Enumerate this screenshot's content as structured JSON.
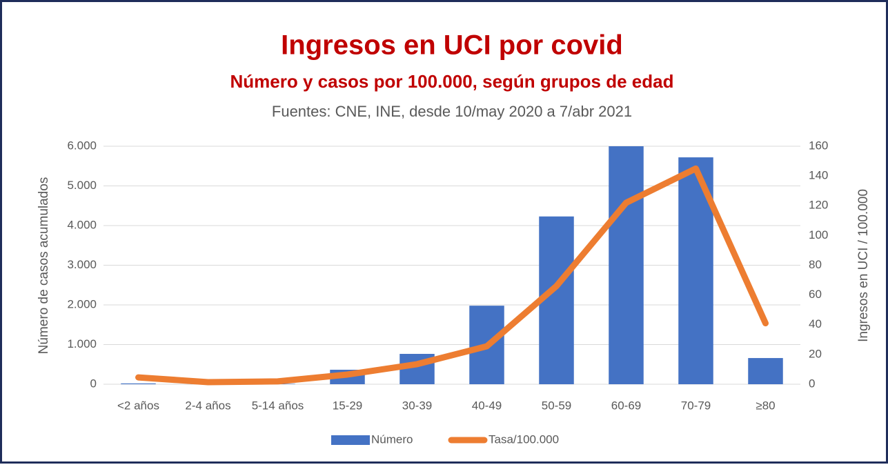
{
  "chart_data": {
    "type": "bar-line",
    "title": "Ingresos en UCI por covid",
    "subtitle": "Número y casos por 100.000, según grupos de edad",
    "source": "Fuentes: CNE, INE, desde 10/may 2020 a 7/abr 2021",
    "y_label": "Número de casos acumulados",
    "y2_label": "Ingresos en UCI / 100.000",
    "categories": [
      "<2 años",
      "2-4 años",
      "5-14 años",
      "15-29",
      "30-39",
      "40-49",
      "50-59",
      "60-69",
      "70-79",
      "≥80"
    ],
    "series": [
      {
        "name": "Número",
        "color": "#4472c4",
        "kind": "bar",
        "values": [
          20,
          5,
          10,
          365,
          765,
          1980,
          4230,
          6000,
          5720,
          660
        ]
      },
      {
        "name": "Tasa/100.000",
        "color": "#ed7d31",
        "kind": "line",
        "axis": "y2",
        "values": [
          4.6,
          1.4,
          1.9,
          6.5,
          13.5,
          25.5,
          66,
          122,
          145,
          41
        ]
      }
    ],
    "ylim": [
      0,
      6000
    ],
    "yticks": [
      0,
      {
        "value": 1000,
        "label": "1.000"
      },
      {
        "value": 2000,
        "label": "2.000"
      },
      {
        "value": 3000,
        "label": "3.000"
      },
      {
        "value": 4000,
        "label": "4.000"
      },
      {
        "value": 5000,
        "label": "5.000"
      },
      {
        "value": 6000,
        "label": "6.000"
      }
    ],
    "y2lim": [
      0,
      160
    ],
    "y2ticks": [
      0,
      20,
      40,
      60,
      80,
      100,
      120,
      140,
      160
    ],
    "grid": true,
    "legend": "bottom"
  }
}
